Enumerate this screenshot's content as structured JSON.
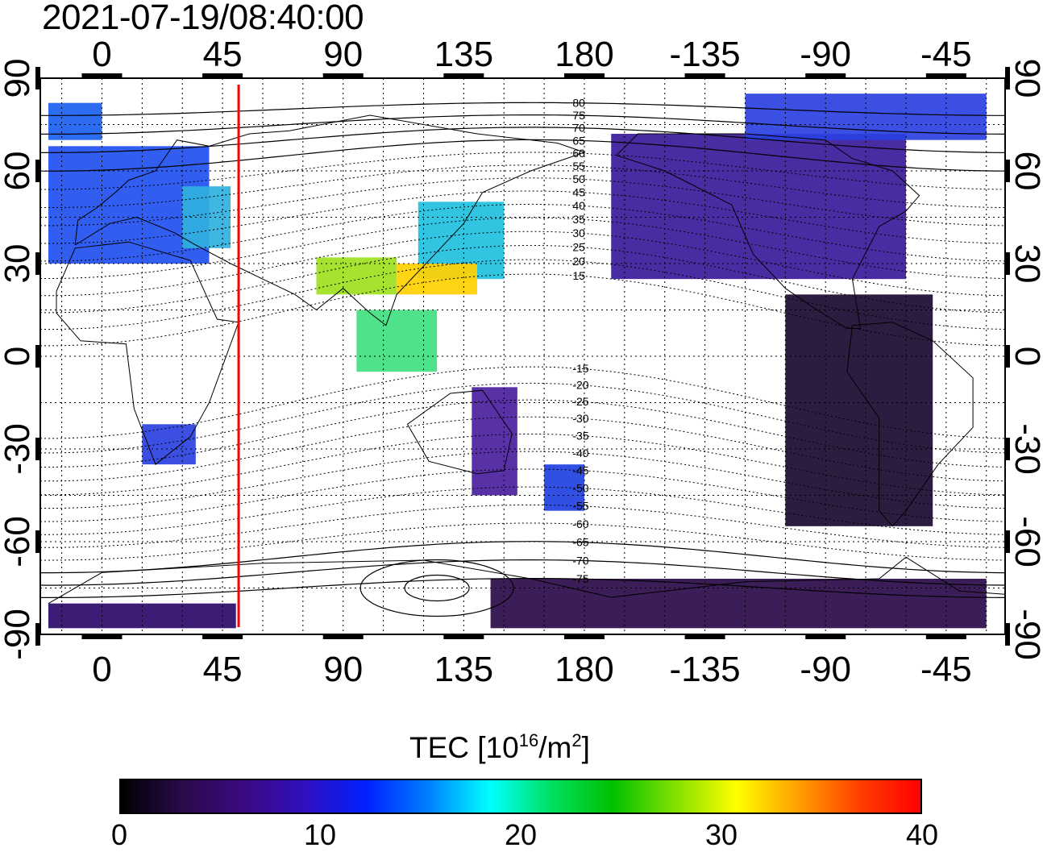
{
  "timestamp": "2021-07-19/08:40:00",
  "axes": {
    "x_top_labels": [
      "0",
      "45",
      "90",
      "135",
      "180",
      "-135",
      "-90",
      "-45"
    ],
    "x_bottom_labels": [
      "0",
      "45",
      "90",
      "135",
      "180",
      "-135",
      "-90",
      "-45"
    ],
    "x_degrees": [
      0,
      45,
      90,
      135,
      180,
      225,
      270,
      315
    ],
    "y_left_labels": [
      "90",
      "60",
      "30",
      "0",
      "-30",
      "-60",
      "-90"
    ],
    "y_right_labels": [
      "90",
      "60",
      "30",
      "0",
      "-30",
      "-60",
      "-90"
    ],
    "y_degrees": [
      90,
      60,
      30,
      0,
      -30,
      -60,
      -90
    ],
    "lon_range": [
      -23,
      337
    ],
    "lat_range": [
      -90,
      90
    ]
  },
  "magnetic_latitude_labels": {
    "north": [
      "80",
      "75",
      "70",
      "65",
      "60",
      "55",
      "50",
      "45",
      "40",
      "35",
      "30",
      "25",
      "20",
      "15"
    ],
    "south": [
      "-15",
      "-20",
      "-25",
      "-30",
      "-35",
      "-40",
      "-45",
      "-50",
      "-55",
      "-60",
      "-65",
      "-70",
      "-75"
    ]
  },
  "marker_line": {
    "longitude": 51,
    "color": "#ff0000"
  },
  "colorbar": {
    "title_main": "TEC  [10",
    "title_exp1": "16",
    "title_mid": "/m",
    "title_exp2": "2",
    "title_end": "]",
    "min": 0,
    "max": 40,
    "tick_labels": [
      "0",
      "10",
      "20",
      "30",
      "40"
    ],
    "tick_values": [
      0,
      10,
      20,
      30,
      40
    ],
    "colors": [
      "#000000",
      "#2a0a4a",
      "#3a0a80",
      "#3010c0",
      "#0020ff",
      "#0080ff",
      "#00ffff",
      "#00e060",
      "#00c000",
      "#80e000",
      "#ffff00",
      "#ffa000",
      "#ff4000",
      "#ff0000"
    ]
  },
  "tec_regions": [
    {
      "name": "europe",
      "color": "#1a5cf0"
    },
    {
      "name": "east-asia",
      "color": "#20c0e0"
    },
    {
      "name": "china-south",
      "color": "#b0e020"
    },
    {
      "name": "north-america",
      "color": "#3a1a9a"
    },
    {
      "name": "south-america",
      "color": "#1a0a30"
    },
    {
      "name": "australia",
      "color": "#3a1a9a"
    },
    {
      "name": "antarctica",
      "color": "#2a0a4a"
    }
  ]
}
